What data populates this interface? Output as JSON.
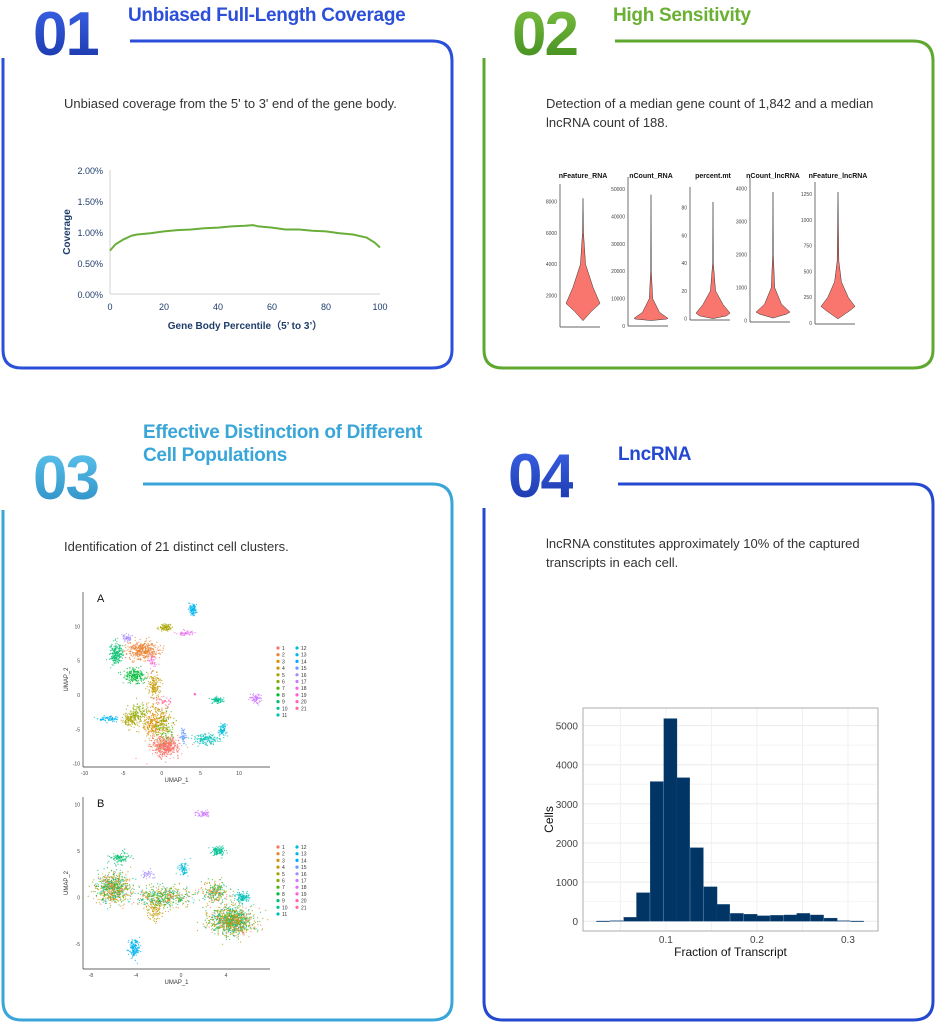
{
  "colors": {
    "p1": "#2b4fd8",
    "p2": "#5fa82f",
    "p3": "#3aa6d8",
    "p4": "#2448d0",
    "coverage_line": "#6aae3a",
    "violin_fill": "#f8766d",
    "hist_bar": "#003565",
    "axis_text": "#1f3d6b"
  },
  "panels": [
    {
      "number": "01",
      "title": "Unbiased Full-Length Coverage",
      "description": "Unbiased coverage from the 5' to 3' end of the gene body."
    },
    {
      "number": "02",
      "title": "High Sensitivity",
      "description": "Detection of a median gene count of 1,842 and a median lncRNA count of 188."
    },
    {
      "number": "03",
      "title_line1": "Effective Distinction of Different",
      "title_line2": "Cell Populations",
      "description": "Identification of 21 distinct cell clusters."
    },
    {
      "number": "04",
      "title": "LncRNA",
      "description": "lncRNA constitutes approximately 10% of the captured transcripts in each cell."
    }
  ],
  "chart_data": [
    {
      "type": "line",
      "xlabel": "Gene Body Percentile（5’ to 3’）",
      "ylabel": "Coverage",
      "xlim": [
        0,
        100
      ],
      "ylim": [
        0,
        2
      ],
      "xticks": [
        "0",
        "20",
        "40",
        "60",
        "80",
        "100"
      ],
      "yticks": [
        "0.00%",
        "0.50%",
        "1.00%",
        "1.50%",
        "2.00%"
      ],
      "grid": false,
      "x": [
        0,
        2,
        5,
        8,
        10,
        15,
        20,
        25,
        30,
        35,
        40,
        45,
        50,
        53,
        55,
        60,
        65,
        70,
        75,
        80,
        85,
        90,
        95,
        98,
        100
      ],
      "y": [
        0.7,
        0.8,
        0.88,
        0.94,
        0.96,
        0.98,
        1.01,
        1.03,
        1.04,
        1.06,
        1.07,
        1.09,
        1.1,
        1.11,
        1.09,
        1.07,
        1.04,
        1.04,
        1.02,
        1.01,
        0.98,
        0.96,
        0.91,
        0.83,
        0.75
      ]
    },
    {
      "type": "violin",
      "panels": [
        {
          "title": "nFeature_RNA",
          "yticks": [
            2000,
            4000,
            6000,
            8000
          ],
          "ylim": [
            0,
            8600
          ],
          "profile": [
            [
              400,
              0
            ],
            [
              1000,
              0.5
            ],
            [
              1500,
              1
            ],
            [
              2500,
              0.6
            ],
            [
              4000,
              0.15
            ],
            [
              6000,
              0.03
            ],
            [
              8200,
              0
            ]
          ]
        },
        {
          "title": "nCount_RNA",
          "yticks": [
            0,
            10000,
            20000,
            30000,
            40000,
            50000
          ],
          "ylim": [
            0,
            51500
          ],
          "profile": [
            [
              2000,
              0
            ],
            [
              2500,
              0.9
            ],
            [
              2800,
              1
            ],
            [
              5000,
              0.5
            ],
            [
              10000,
              0.1
            ],
            [
              20000,
              0.02
            ],
            [
              48000,
              0
            ]
          ]
        },
        {
          "title": "percent.mt",
          "yticks": [
            0,
            20,
            40,
            60,
            80
          ],
          "ylim": [
            -1,
            89
          ],
          "profile": [
            [
              0,
              0
            ],
            [
              2,
              0.8
            ],
            [
              4,
              1
            ],
            [
              10,
              0.6
            ],
            [
              20,
              0.15
            ],
            [
              40,
              0.02
            ],
            [
              84,
              0
            ]
          ]
        },
        {
          "title": "nCount_lncRNA",
          "yticks": [
            0,
            1000,
            2000,
            3000,
            4000
          ],
          "ylim": [
            -40,
            4080
          ],
          "profile": [
            [
              80,
              0
            ],
            [
              200,
              0.8
            ],
            [
              260,
              1
            ],
            [
              500,
              0.5
            ],
            [
              1000,
              0.1
            ],
            [
              2000,
              0.02
            ],
            [
              3900,
              0
            ]
          ]
        },
        {
          "title": "nFeature_lncRNA",
          "yticks": [
            0,
            250,
            500,
            750,
            1000,
            1250
          ],
          "ylim": [
            -10,
            1290
          ],
          "profile": [
            [
              40,
              0
            ],
            [
              120,
              0.7
            ],
            [
              160,
              1
            ],
            [
              250,
              0.6
            ],
            [
              400,
              0.2
            ],
            [
              600,
              0.05
            ],
            [
              1270,
              0
            ]
          ]
        }
      ]
    },
    {
      "type": "scatter",
      "label": "A",
      "xlabel": "UMAP_1",
      "ylabel": "UMAP_2",
      "xticks": [
        -10,
        -5,
        0,
        5,
        10
      ],
      "yticks": [
        -10,
        -5,
        0,
        5,
        10
      ],
      "xlim": [
        -10.2,
        14
      ],
      "ylim": [
        -10.5,
        15
      ],
      "legend": [
        "1",
        "2",
        "3",
        "4",
        "5",
        "6",
        "7",
        "8",
        "9",
        "10",
        "11",
        "12",
        "13",
        "14",
        "15",
        "16",
        "17",
        "18",
        "19",
        "20",
        "21"
      ],
      "clusters": [
        [
          1,
          0.5,
          -7.5,
          1.5,
          1.2,
          500
        ],
        [
          2,
          -2.5,
          6.5,
          1.7,
          1.1,
          400
        ],
        [
          3,
          -0.8,
          -4,
          1.4,
          2,
          350
        ],
        [
          4,
          -1,
          1.5,
          0.7,
          1.6,
          150
        ],
        [
          5,
          0.5,
          9.8,
          0.9,
          0.4,
          90
        ],
        [
          5,
          -3.8,
          -3.5,
          1,
          0.9,
          150
        ],
        [
          6,
          -3,
          -2.5,
          1,
          1,
          100
        ],
        [
          7,
          0.5,
          -5,
          1,
          2,
          100
        ],
        [
          8,
          -3.5,
          2.8,
          1.1,
          0.9,
          200
        ],
        [
          9,
          -6,
          6,
          0.7,
          1.3,
          200
        ],
        [
          10,
          7.2,
          -0.8,
          0.6,
          0.4,
          90
        ],
        [
          11,
          5.8,
          -6.5,
          1.5,
          0.7,
          150
        ],
        [
          12,
          7.8,
          -5,
          0.4,
          0.8,
          80
        ],
        [
          13,
          4,
          12.4,
          0.4,
          0.8,
          100
        ],
        [
          13,
          -7,
          -3.5,
          1.3,
          0.3,
          80
        ],
        [
          15,
          2.8,
          -6,
          0.3,
          0.8,
          50
        ],
        [
          16,
          -4.5,
          8.3,
          0.5,
          0.5,
          50
        ],
        [
          17,
          12.2,
          -0.5,
          0.5,
          0.6,
          80
        ],
        [
          18,
          3,
          9,
          0.9,
          0.3,
          50
        ],
        [
          19,
          -1.2,
          5,
          0.4,
          0.9,
          40
        ],
        [
          20,
          4.3,
          0.1,
          0.1,
          0.2,
          10
        ],
        [
          21,
          0.5,
          -1,
          1,
          0.6,
          40
        ]
      ]
    },
    {
      "type": "scatter",
      "label": "B",
      "xlabel": "UMAP_1",
      "ylabel": "UMAP_2",
      "xticks": [
        -8,
        -4,
        0,
        4
      ],
      "yticks": [
        -5,
        0,
        5,
        10
      ],
      "xlim": [
        -8.7,
        7.9
      ],
      "ylim": [
        -7.7,
        10.8
      ],
      "legend": [
        "1",
        "2",
        "3",
        "4",
        "5",
        "6",
        "7",
        "8",
        "9",
        "10",
        "11",
        "12",
        "13",
        "14",
        "15",
        "16",
        "17",
        "18",
        "19",
        "20",
        "21"
      ],
      "clusters": [
        [
          0,
          4.5,
          -2.5,
          1.6,
          1.2,
          1100
        ],
        [
          0,
          -6,
          1,
          1.3,
          1.3,
          700
        ],
        [
          0,
          -1.5,
          0,
          2,
          0.9,
          500
        ],
        [
          0,
          3,
          0.5,
          1,
          1,
          250
        ],
        [
          9,
          -5.5,
          4.2,
          0.8,
          0.5,
          100
        ],
        [
          4,
          -2.2,
          -1.5,
          0.6,
          0.9,
          100
        ],
        [
          17,
          2,
          9,
          0.5,
          0.3,
          60
        ],
        [
          10,
          3.3,
          5,
          0.5,
          0.4,
          120
        ],
        [
          13,
          -4.2,
          -5.5,
          0.4,
          0.8,
          150
        ],
        [
          12,
          0.2,
          3,
          0.4,
          0.7,
          80
        ],
        [
          11,
          5.5,
          0,
          0.5,
          0.5,
          120
        ],
        [
          16,
          -3,
          2.5,
          0.5,
          0.4,
          40
        ]
      ]
    },
    {
      "type": "bar",
      "xlabel": "Fraction of Transcript",
      "ylabel": "Cells",
      "xlim": [
        0.009,
        0.333
      ],
      "ylim": [
        -250,
        5450
      ],
      "grid": true,
      "xticks": [
        0.1,
        0.2,
        0.3
      ],
      "yticks": [
        0,
        1000,
        2000,
        3000,
        4000,
        5000
      ],
      "bin_width": 0.0145,
      "bins": [
        [
          0.031,
          5
        ],
        [
          0.046,
          15
        ],
        [
          0.061,
          100
        ],
        [
          0.075,
          730
        ],
        [
          0.09,
          3570
        ],
        [
          0.105,
          5180
        ],
        [
          0.119,
          3670
        ],
        [
          0.134,
          1880
        ],
        [
          0.149,
          880
        ],
        [
          0.163,
          430
        ],
        [
          0.178,
          200
        ],
        [
          0.193,
          180
        ],
        [
          0.207,
          140
        ],
        [
          0.222,
          150
        ],
        [
          0.237,
          160
        ],
        [
          0.251,
          200
        ],
        [
          0.266,
          160
        ],
        [
          0.281,
          80
        ],
        [
          0.295,
          15
        ],
        [
          0.31,
          5
        ]
      ]
    }
  ]
}
